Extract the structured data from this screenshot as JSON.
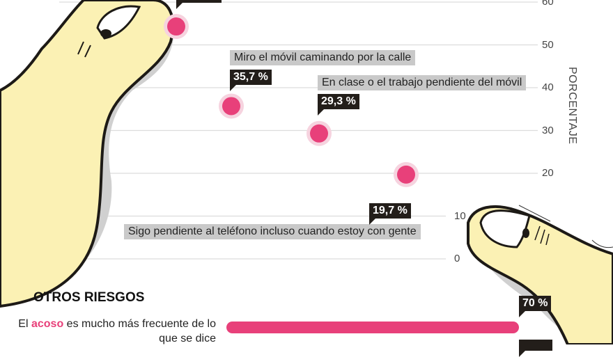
{
  "chart_data": {
    "type": "scatter",
    "ylabel": "PORCENTAJE",
    "ylim": [
      0,
      60
    ],
    "yticks": [
      0,
      10,
      20,
      30,
      40,
      50,
      60
    ],
    "grid": true,
    "point_color": "#e8407a",
    "points": [
      {
        "value": 54.3,
        "label": "",
        "value_label": ""
      },
      {
        "value": 35.7,
        "label": "Miro el móvil caminando por la calle",
        "value_label": "35,7 %"
      },
      {
        "value": 29.3,
        "label": "En clase o el trabajo pendiente del móvil",
        "value_label": "29,3 %"
      },
      {
        "value": 19.7,
        "label": "Sigo pendiente al teléfono incluso cuando estoy con gente",
        "value_label": "19,7 %"
      }
    ]
  },
  "otros_riesgos": {
    "title": "OTROS RIESGOS",
    "items": [
      {
        "text_before": "El ",
        "highlight": "acoso",
        "text_after": " es mucho más frecuente de lo que se dice",
        "value": 70,
        "value_label": "70 %"
      }
    ]
  }
}
